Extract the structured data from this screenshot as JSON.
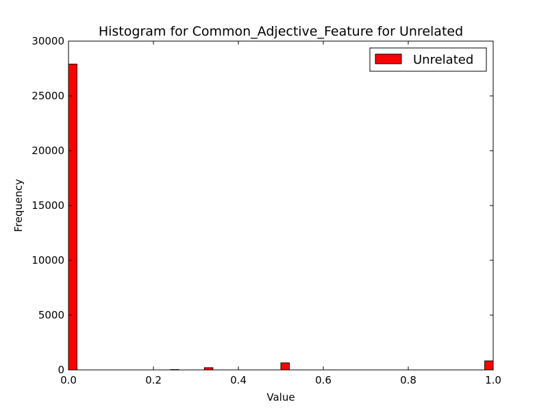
{
  "chart_data": {
    "type": "bar",
    "title": "Histogram for Common_Adjective_Feature for Unrelated",
    "xlabel": "Value",
    "ylabel": "Frequency",
    "xlim": [
      0.0,
      1.0
    ],
    "ylim": [
      0,
      30000
    ],
    "x_ticks": [
      "0.0",
      "0.2",
      "0.4",
      "0.6",
      "0.8",
      "1.0"
    ],
    "y_ticks": [
      "0",
      "5000",
      "10000",
      "15000",
      "20000",
      "25000",
      "30000"
    ],
    "legend_position": "top-right",
    "grid": false,
    "bin_width": 0.02,
    "series": [
      {
        "name": "Unrelated",
        "color": "#ff0000",
        "bins": [
          {
            "x0": 0.0,
            "value": 27900
          },
          {
            "x0": 0.24,
            "value": 30
          },
          {
            "x0": 0.32,
            "value": 200
          },
          {
            "x0": 0.5,
            "value": 640
          },
          {
            "x0": 0.98,
            "value": 820
          }
        ]
      }
    ]
  }
}
